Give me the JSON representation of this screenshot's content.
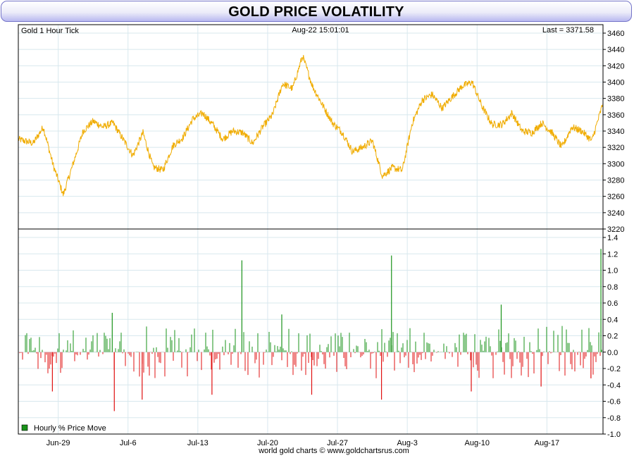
{
  "title": "GOLD PRICE VOLATILITY",
  "colors": {
    "price_line": "#f0ac00",
    "up_bar": "#1a931a",
    "down_bar": "#e01010",
    "grid": "#d8e8ee",
    "title_bg": "#c4c4f2"
  },
  "chart_data": [
    {
      "type": "line",
      "name": "price-panel",
      "label": "Gold 1 Hour Tick",
      "timestamp": "Aug-22  15:01:01",
      "last": "Last = 3371.58",
      "ylim": [
        3220,
        3460
      ],
      "yticks": [
        "3460",
        "3440",
        "3420",
        "3400",
        "3380",
        "3360",
        "3340",
        "3320",
        "3300",
        "3280",
        "3260",
        "3240",
        "3220"
      ],
      "points": [
        {
          "x": "Jun-25",
          "y": 3330
        },
        {
          "x": "Jun-26",
          "y": 3325
        },
        {
          "x": "Jun-27",
          "y": 3345
        },
        {
          "x": "Jun-28",
          "y": 3298
        },
        {
          "x": "Jun-29",
          "y": 3262
        },
        {
          "x": "Jun-30",
          "y": 3300
        },
        {
          "x": "Jul-1",
          "y": 3340
        },
        {
          "x": "Jul-2",
          "y": 3352
        },
        {
          "x": "Jul-3",
          "y": 3345
        },
        {
          "x": "Jul-4",
          "y": 3350
        },
        {
          "x": "Jul-5",
          "y": 3330
        },
        {
          "x": "Jul-6",
          "y": 3310
        },
        {
          "x": "Jul-7",
          "y": 3338
        },
        {
          "x": "Jul-8",
          "y": 3296
        },
        {
          "x": "Jul-9",
          "y": 3292
        },
        {
          "x": "Jul-10",
          "y": 3322
        },
        {
          "x": "Jul-11",
          "y": 3332
        },
        {
          "x": "Jul-12",
          "y": 3355
        },
        {
          "x": "Jul-13",
          "y": 3362
        },
        {
          "x": "Jul-14",
          "y": 3348
        },
        {
          "x": "Jul-15",
          "y": 3330
        },
        {
          "x": "Jul-16",
          "y": 3340
        },
        {
          "x": "Jul-17",
          "y": 3338
        },
        {
          "x": "Jul-18",
          "y": 3325
        },
        {
          "x": "Jul-19",
          "y": 3345
        },
        {
          "x": "Jul-20",
          "y": 3360
        },
        {
          "x": "Jul-21",
          "y": 3398
        },
        {
          "x": "Jul-22",
          "y": 3392
        },
        {
          "x": "Jul-23",
          "y": 3432
        },
        {
          "x": "Jul-24",
          "y": 3395
        },
        {
          "x": "Jul-25",
          "y": 3372
        },
        {
          "x": "Jul-26",
          "y": 3350
        },
        {
          "x": "Jul-27",
          "y": 3338
        },
        {
          "x": "Jul-28",
          "y": 3315
        },
        {
          "x": "Jul-29",
          "y": 3320
        },
        {
          "x": "Jul-30",
          "y": 3328
        },
        {
          "x": "Jul-31",
          "y": 3285
        },
        {
          "x": "Aug-1",
          "y": 3295
        },
        {
          "x": "Aug-2",
          "y": 3292
        },
        {
          "x": "Aug-3",
          "y": 3350
        },
        {
          "x": "Aug-4",
          "y": 3378
        },
        {
          "x": "Aug-5",
          "y": 3385
        },
        {
          "x": "Aug-6",
          "y": 3368
        },
        {
          "x": "Aug-7",
          "y": 3382
        },
        {
          "x": "Aug-8",
          "y": 3395
        },
        {
          "x": "Aug-9",
          "y": 3400
        },
        {
          "x": "Aug-10",
          "y": 3370
        },
        {
          "x": "Aug-11",
          "y": 3348
        },
        {
          "x": "Aug-12",
          "y": 3348
        },
        {
          "x": "Aug-13",
          "y": 3362
        },
        {
          "x": "Aug-14",
          "y": 3340
        },
        {
          "x": "Aug-15",
          "y": 3338
        },
        {
          "x": "Aug-16",
          "y": 3350
        },
        {
          "x": "Aug-17",
          "y": 3338
        },
        {
          "x": "Aug-18",
          "y": 3320
        },
        {
          "x": "Aug-19",
          "y": 3345
        },
        {
          "x": "Aug-20",
          "y": 3340
        },
        {
          "x": "Aug-21",
          "y": 3328
        },
        {
          "x": "Aug-22",
          "y": 3374
        }
      ]
    },
    {
      "type": "bar",
      "name": "volatility-panel",
      "legend": "Hourly % Price Move",
      "ylim": [
        -1.0,
        1.4
      ],
      "yticks": [
        "1.4",
        "1.2",
        "1.0",
        "0.8",
        "0.6",
        "0.4",
        "0.2",
        "0.0",
        "-0.2",
        "-0.4",
        "-0.6",
        "-0.8",
        "-1.0"
      ],
      "spikes": [
        {
          "x": "Jun-28",
          "value": -0.48
        },
        {
          "x": "Jul-4",
          "value": 0.48
        },
        {
          "x": "Jul-4",
          "value": -0.72
        },
        {
          "x": "Jul-7",
          "value": -0.58
        },
        {
          "x": "Jul-14",
          "value": -0.52
        },
        {
          "x": "Jul-17",
          "value": 1.12
        },
        {
          "x": "Jul-21",
          "value": 0.46
        },
        {
          "x": "Jul-24",
          "value": -0.52
        },
        {
          "x": "Jul-31",
          "value": -0.58
        },
        {
          "x": "Aug-1",
          "value": 1.18
        },
        {
          "x": "Aug-9",
          "value": -0.48
        },
        {
          "x": "Aug-12",
          "value": 0.58
        },
        {
          "x": "Aug-16",
          "value": -0.42
        },
        {
          "x": "Aug-21",
          "value": -0.32
        },
        {
          "x": "Aug-22",
          "value": 1.26
        }
      ]
    }
  ],
  "x_axis": {
    "dates": [
      "Jun-29",
      "Jul-6",
      "Jul-13",
      "Jul-20",
      "Jul-27",
      "Aug-3",
      "Aug-10",
      "Aug-17"
    ]
  },
  "footer": "world gold charts © www.goldchartsrus.com"
}
